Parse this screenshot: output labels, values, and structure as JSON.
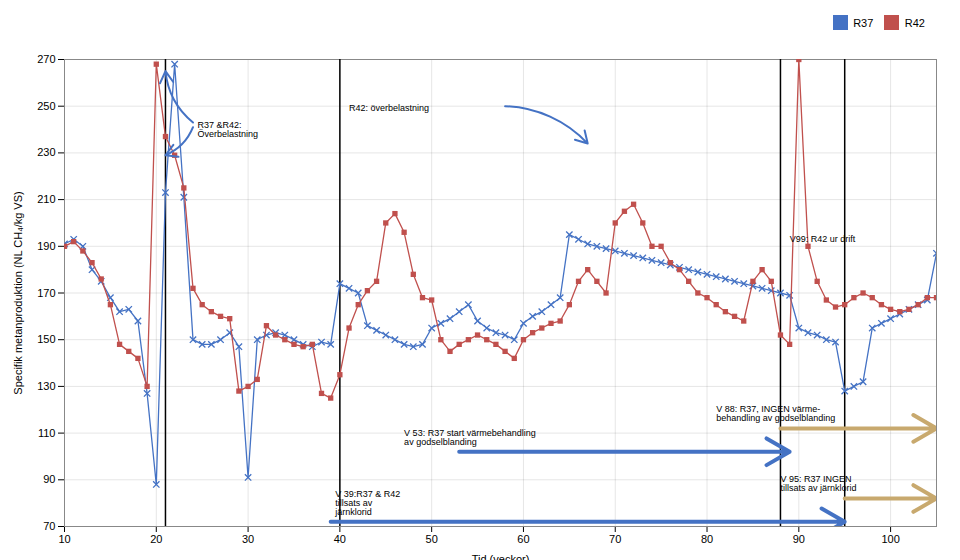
{
  "chart_data": {
    "type": "line",
    "xlabel": "Tid (veckor)",
    "ylabel": "Specifik metanproduktion (NL CH₄/kg VS)",
    "xlim": [
      10,
      105
    ],
    "ylim": [
      70,
      270
    ],
    "xticks": [
      10,
      20,
      30,
      40,
      50,
      60,
      70,
      80,
      90,
      100
    ],
    "yticks": [
      70,
      90,
      110,
      130,
      150,
      170,
      190,
      210,
      230,
      250,
      270
    ],
    "grid": true,
    "legend": "upper right",
    "x": [
      10,
      11,
      12,
      13,
      14,
      15,
      16,
      17,
      18,
      19,
      20,
      21,
      22,
      23,
      24,
      25,
      26,
      27,
      28,
      29,
      30,
      31,
      32,
      33,
      34,
      35,
      36,
      37,
      38,
      39,
      40,
      41,
      42,
      43,
      44,
      45,
      46,
      47,
      48,
      49,
      50,
      51,
      52,
      53,
      54,
      55,
      56,
      57,
      58,
      59,
      60,
      61,
      62,
      63,
      64,
      65,
      66,
      67,
      68,
      69,
      70,
      71,
      72,
      73,
      74,
      75,
      76,
      77,
      78,
      79,
      80,
      81,
      82,
      83,
      84,
      85,
      86,
      87,
      88,
      89,
      90,
      91,
      92,
      93,
      94,
      95,
      96,
      97,
      98,
      99,
      100,
      101,
      102,
      103,
      104,
      105
    ],
    "series": [
      {
        "name": "R37",
        "color": "#4472C4",
        "marker": "x",
        "values": [
          191,
          193,
          190,
          180,
          175,
          168,
          162,
          163,
          158,
          127,
          88,
          213,
          268,
          211,
          150,
          148,
          148,
          150,
          153,
          147,
          91,
          150,
          152,
          153,
          152,
          150,
          148,
          147,
          149,
          148,
          174,
          172,
          170,
          156,
          154,
          152,
          150,
          148,
          147,
          148,
          155,
          157,
          159,
          162,
          165,
          158,
          155,
          153,
          152,
          150,
          157,
          160,
          162,
          165,
          168,
          195,
          193,
          191,
          190,
          189,
          188,
          187,
          186,
          185,
          184,
          183,
          182,
          181,
          180,
          179,
          178,
          177,
          176,
          175,
          174,
          173,
          172,
          171,
          170,
          169,
          155,
          153,
          152,
          150,
          149,
          128,
          130,
          132,
          155,
          157,
          159,
          161,
          163,
          165,
          167,
          187
        ]
      },
      {
        "name": "R42",
        "color": "#C0504D",
        "marker": "square",
        "values": [
          190,
          192,
          188,
          183,
          176,
          165,
          148,
          145,
          142,
          130,
          268,
          237,
          229,
          215,
          172,
          165,
          162,
          160,
          159,
          128,
          130,
          133,
          156,
          152,
          150,
          148,
          147,
          148,
          127,
          125,
          135,
          155,
          165,
          171,
          175,
          200,
          204,
          196,
          178,
          168,
          167,
          150,
          145,
          148,
          150,
          152,
          150,
          148,
          145,
          142,
          150,
          153,
          155,
          157,
          158,
          165,
          175,
          180,
          175,
          170,
          200,
          205,
          208,
          200,
          190,
          190,
          183,
          180,
          175,
          170,
          168,
          165,
          162,
          160,
          158,
          175,
          180,
          175,
          152,
          148,
          270,
          190,
          175,
          167,
          164,
          165,
          168,
          170,
          168,
          165,
          163,
          162,
          163,
          165,
          168,
          168
        ]
      }
    ],
    "vlines": [
      21,
      40,
      88,
      95
    ],
    "range_arrows": [
      {
        "x1": 39,
        "x2": 95,
        "y": 72,
        "color": "#4472C4"
      },
      {
        "x1": 53,
        "x2": 89,
        "y": 102,
        "color": "#4472C4"
      },
      {
        "x1": 88,
        "x2": 105,
        "y": 112,
        "color": "#C8A96E"
      },
      {
        "x1": 95,
        "x2": 105,
        "y": 82,
        "color": "#C8A96E"
      }
    ],
    "pointer_arrows": [
      {
        "x1": 24,
        "y1": 243,
        "x2": 21,
        "y2": 265,
        "color": "#4472C4"
      },
      {
        "x1": 24,
        "y1": 241,
        "x2": 21,
        "y2": 229,
        "color": "#4472C4"
      },
      {
        "x1": 58,
        "y1": 250,
        "x2": 67,
        "y2": 234,
        "color": "#4472C4"
      }
    ],
    "annotations": [
      {
        "text": "V 39:R37 & R42\ntillsats av\njärnklorid",
        "x": 39.5,
        "y": 75
      },
      {
        "text": "V 53: R37 start värmebehandling\nav godselblanding",
        "x": 47,
        "y": 105
      },
      {
        "text": "V 88: R37, INGEN värme-\nbehandling av godselblanding",
        "x": 81,
        "y": 115
      },
      {
        "text": "V 95: R37 INGEN\ntillsats av järnklorid",
        "x": 88,
        "y": 85
      },
      {
        "text": "V99: R42 ur drift",
        "x": 89,
        "y": 192
      },
      {
        "text": "R37 &R42:\nÖverbelastning",
        "x": 24.5,
        "y": 237
      },
      {
        "text": "R42: överbelastning",
        "x": 41,
        "y": 248
      }
    ]
  }
}
